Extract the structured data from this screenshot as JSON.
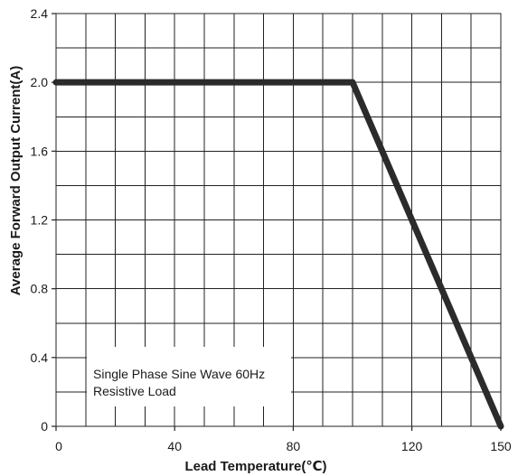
{
  "chart_data": {
    "type": "line",
    "title": "",
    "xlabel": "Lead Temperature(℃)",
    "ylabel": "Average Forward Output Current(A)",
    "xlim": [
      0,
      150
    ],
    "ylim": [
      0,
      2.4
    ],
    "x_tick_labels": [
      "0",
      "40",
      "80",
      "120",
      "150"
    ],
    "x_tick_values": [
      0,
      40,
      80,
      120,
      150
    ],
    "y_tick_labels": [
      "0",
      "0.4",
      "0.8",
      "1.2",
      "1.6",
      "2.0",
      "2.4"
    ],
    "y_tick_values": [
      0,
      0.4,
      0.8,
      1.2,
      1.6,
      2.0,
      2.4
    ],
    "x_grid": [
      10,
      20,
      30,
      40,
      50,
      60,
      70,
      80,
      90,
      100,
      110,
      120,
      130,
      140
    ],
    "y_grid": [
      0.2,
      0.4,
      0.6,
      0.8,
      1.0,
      1.2,
      1.4,
      1.6,
      1.8,
      2.0,
      2.2
    ],
    "grid": true,
    "legend": "none",
    "series": [
      {
        "x": [
          0,
          100,
          150
        ],
        "y": [
          2.0,
          2.0,
          0
        ]
      }
    ],
    "annotations": [
      "Single Phase Sine Wave 60Hz",
      "Resistive Load"
    ],
    "colors": {
      "line": "#2b2b2b",
      "grid": "#222222",
      "axes": "#222222",
      "background": "#ffffff"
    }
  }
}
